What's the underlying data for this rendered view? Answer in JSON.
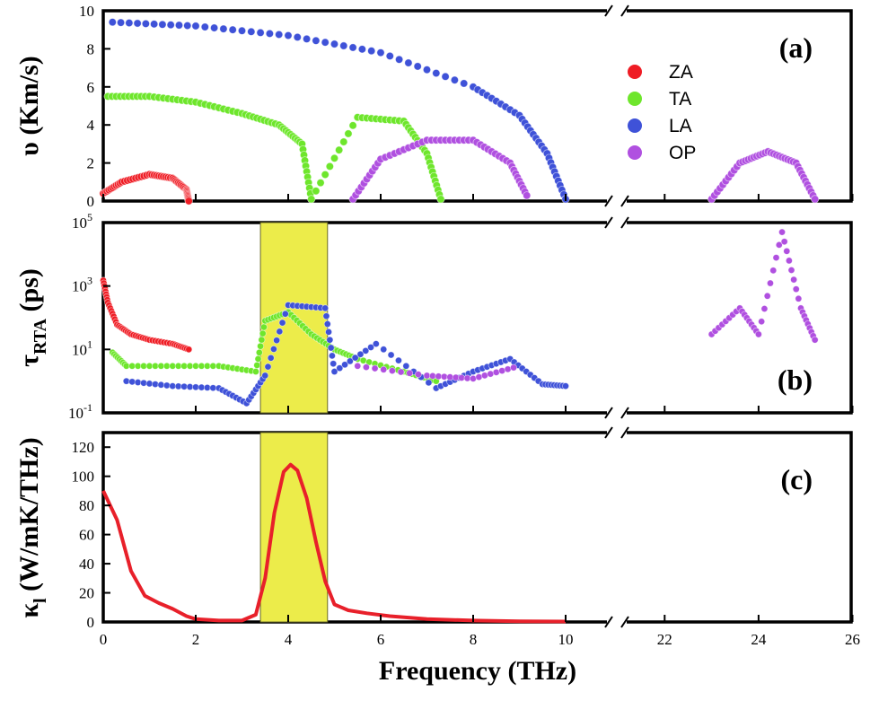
{
  "colors": {
    "ZA": "#ef1c24",
    "TA": "#6ee62c",
    "LA": "#3f52d8",
    "OP": "#b050e0",
    "highlight": "#ecec4a",
    "kappa_line": "#e8202a"
  },
  "chart_data": [
    {
      "panel": "a",
      "type": "scatter",
      "ylabel": "υ (Km/s)",
      "xlabel": "",
      "x_break": [
        10.8,
        21
      ],
      "xlim": [
        0,
        26
      ],
      "ylim": [
        0,
        10
      ],
      "yticks": [
        "0",
        "2",
        "4",
        "6",
        "8",
        "10"
      ],
      "legend_position": "top-right",
      "series": [
        {
          "name": "ZA",
          "approx_points": [
            [
              0.0,
              0.4
            ],
            [
              0.4,
              1.0
            ],
            [
              1.0,
              1.4
            ],
            [
              1.5,
              1.2
            ],
            [
              1.8,
              0.6
            ],
            [
              1.85,
              0.0
            ]
          ]
        },
        {
          "name": "TA",
          "approx_points": [
            [
              0.1,
              5.5
            ],
            [
              1.0,
              5.5
            ],
            [
              2.0,
              5.2
            ],
            [
              3.0,
              4.6
            ],
            [
              3.8,
              4.0
            ],
            [
              4.3,
              3.0
            ],
            [
              4.5,
              0.1
            ],
            [
              5.5,
              4.4
            ],
            [
              6.5,
              4.2
            ],
            [
              7.0,
              2.5
            ],
            [
              7.3,
              0.1
            ]
          ]
        },
        {
          "name": "LA",
          "approx_points": [
            [
              0.2,
              9.4
            ],
            [
              2.0,
              9.2
            ],
            [
              4.0,
              8.7
            ],
            [
              6.0,
              7.8
            ],
            [
              8.0,
              6.0
            ],
            [
              9.0,
              4.5
            ],
            [
              9.6,
              2.5
            ],
            [
              10.0,
              0.1
            ]
          ]
        },
        {
          "name": "OP",
          "approx_points": [
            [
              5.4,
              0.1
            ],
            [
              6.0,
              2.2
            ],
            [
              7.0,
              3.2
            ],
            [
              8.0,
              3.2
            ],
            [
              8.8,
              2.0
            ],
            [
              9.2,
              0.1
            ],
            [
              23.0,
              0.1
            ],
            [
              23.6,
              2.0
            ],
            [
              24.2,
              2.6
            ],
            [
              24.8,
              2.0
            ],
            [
              25.2,
              0.1
            ]
          ]
        }
      ]
    },
    {
      "panel": "b",
      "type": "scatter",
      "ylabel": "τ",
      "ylabel_sub": "RTA",
      "ylabel_unit": " (ps)",
      "log_scale": true,
      "ylim": [
        0.1,
        100000
      ],
      "yticks": [
        {
          "base": "10",
          "exp": "-1"
        },
        {
          "base": "10",
          "exp": "1"
        },
        {
          "base": "10",
          "exp": "3"
        },
        {
          "base": "10",
          "exp": "5"
        }
      ],
      "highlight_band": [
        3.4,
        4.85
      ],
      "series": [
        {
          "name": "ZA",
          "approx_points": [
            [
              0.0,
              1500
            ],
            [
              0.1,
              300
            ],
            [
              0.3,
              60
            ],
            [
              0.6,
              30
            ],
            [
              1.0,
              20
            ],
            [
              1.5,
              15
            ],
            [
              1.85,
              10
            ]
          ]
        },
        {
          "name": "TA",
          "approx_points": [
            [
              0.2,
              8
            ],
            [
              0.5,
              3
            ],
            [
              1.5,
              3
            ],
            [
              2.5,
              3
            ],
            [
              3.3,
              2
            ],
            [
              3.5,
              80
            ],
            [
              4.0,
              150
            ],
            [
              4.5,
              30
            ],
            [
              5.0,
              10
            ],
            [
              5.5,
              5
            ],
            [
              6.5,
              2
            ],
            [
              7.2,
              1
            ]
          ]
        },
        {
          "name": "LA",
          "approx_points": [
            [
              0.5,
              1.0
            ],
            [
              1.5,
              0.7
            ],
            [
              2.5,
              0.6
            ],
            [
              3.1,
              0.2
            ],
            [
              3.5,
              1.5
            ],
            [
              4.0,
              250
            ],
            [
              4.8,
              200
            ],
            [
              5.0,
              2
            ],
            [
              5.9,
              15
            ],
            [
              7.2,
              0.6
            ],
            [
              8.0,
              2
            ],
            [
              8.8,
              5
            ],
            [
              9.5,
              0.8
            ],
            [
              10.0,
              0.7
            ]
          ]
        },
        {
          "name": "OP",
          "approx_points": [
            [
              5.5,
              3
            ],
            [
              7.0,
              1.5
            ],
            [
              8.0,
              1.2
            ],
            [
              9.0,
              3
            ],
            [
              23.0,
              30
            ],
            [
              23.6,
              200
            ],
            [
              24.0,
              30
            ],
            [
              24.5,
              50000
            ],
            [
              24.9,
              200
            ],
            [
              25.2,
              20
            ]
          ]
        }
      ]
    },
    {
      "panel": "c",
      "type": "line",
      "ylabel": "κ",
      "ylabel_sub": "l",
      "ylabel_unit": " (W/mK/THz)",
      "xlabel": "Frequency  (THz)",
      "ylim": [
        0,
        130
      ],
      "yticks": [
        "0",
        "20",
        "40",
        "60",
        "80",
        "100",
        "120"
      ],
      "xticks": [
        "0",
        "2",
        "4",
        "6",
        "8",
        "10",
        "22",
        "24",
        "26"
      ],
      "highlight_band": [
        3.4,
        4.85
      ],
      "series": [
        {
          "name": "",
          "x": [
            0.0,
            0.3,
            0.6,
            0.9,
            1.2,
            1.5,
            1.8,
            2.0,
            2.5,
            3.0,
            3.3,
            3.5,
            3.7,
            3.9,
            4.05,
            4.2,
            4.4,
            4.6,
            4.8,
            5.0,
            5.3,
            5.7,
            6.2,
            7.0,
            8.0,
            9.0,
            10.0
          ],
          "y": [
            90.0,
            70.0,
            35.0,
            18.0,
            13.0,
            9.0,
            4.0,
            2.0,
            1.0,
            1.0,
            5.0,
            30.0,
            75.0,
            103.0,
            108.0,
            104.0,
            85.0,
            55.0,
            28.0,
            12.0,
            8.0,
            6.0,
            4.0,
            2.0,
            1.0,
            0.5,
            0.3
          ]
        }
      ]
    }
  ],
  "panel_labels": {
    "a": "(a)",
    "b": "(b)",
    "c": "(c)"
  }
}
